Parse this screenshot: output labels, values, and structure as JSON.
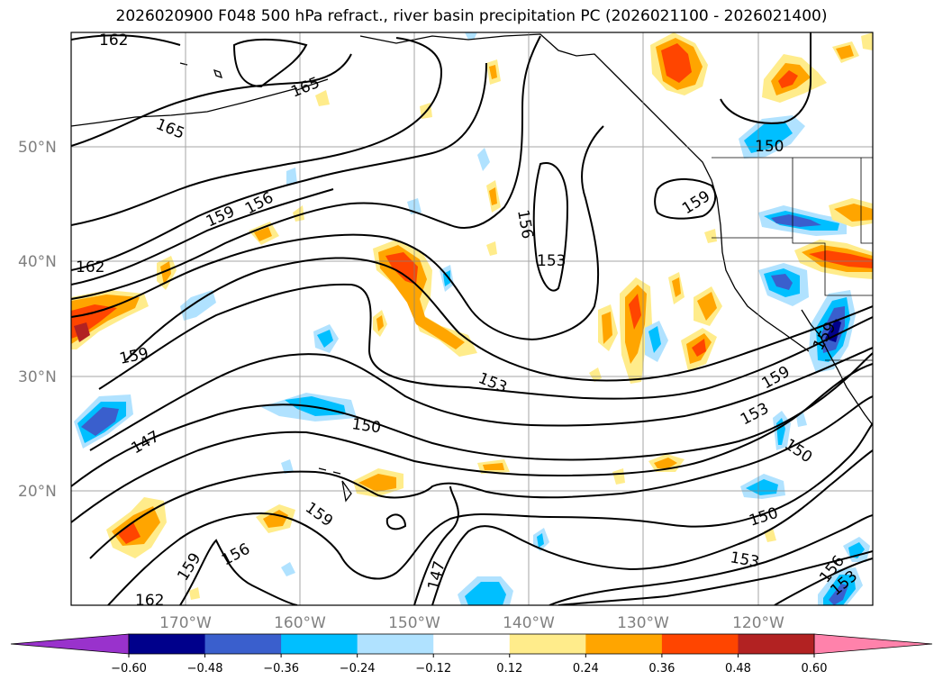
{
  "title": "2026020900 F048 500 hPa refract., river basin precipitation PC (2026021100 - 2026021400)",
  "lat_labels": [
    "50°N",
    "40°N",
    "30°N",
    "20°N"
  ],
  "lon_labels": [
    "170°W",
    "160°W",
    "150°W",
    "140°W",
    "130°W",
    "120°W"
  ],
  "contour_labels": [
    "162",
    "165",
    "165",
    "156",
    "159",
    "162",
    "159",
    "147",
    "150",
    "153",
    "153",
    "156",
    "159",
    "150",
    "153",
    "159",
    "159",
    "150",
    "153",
    "156",
    "159",
    "162",
    "147",
    "150",
    "153",
    "156",
    "162",
    "159"
  ],
  "colorbar": {
    "tick_labels": [
      "−0.60",
      "−0.48",
      "−0.36",
      "−0.24",
      "−0.12",
      "0.12",
      "0.24",
      "0.36",
      "0.48",
      "0.60"
    ],
    "colors": {
      "under": "#9932cc",
      "bins": [
        "#00008b",
        "#3a5fcd",
        "#00bfff",
        "#b0e2ff",
        "#ffffff",
        "#ffec8b",
        "#ffa500",
        "#ff4500",
        "#b22222"
      ],
      "over": "#ff82ab"
    }
  }
}
